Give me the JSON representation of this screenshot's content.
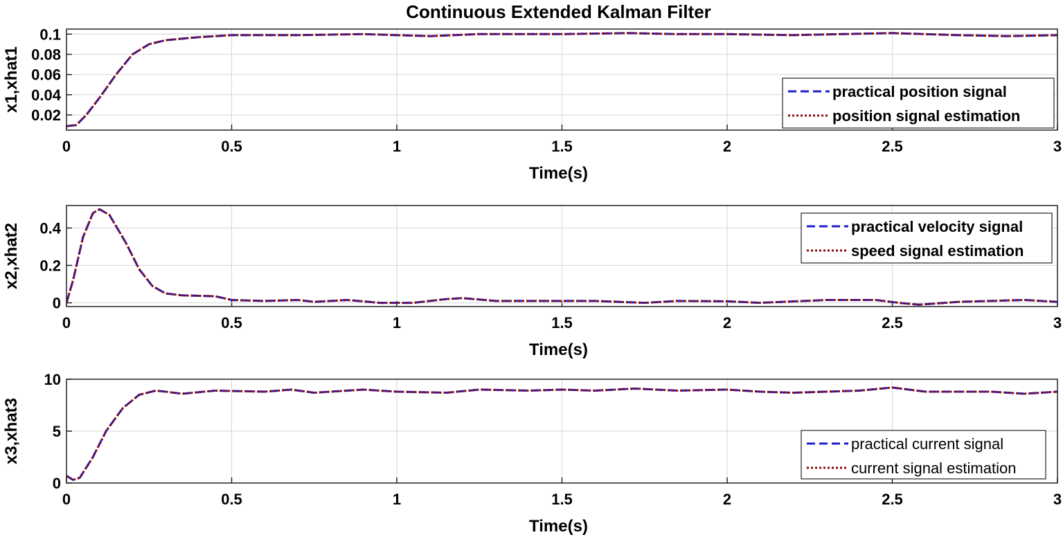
{
  "chart_data": [
    {
      "type": "line",
      "title": "Continuous Extended Kalman Filter",
      "xlabel": "Time(s)",
      "ylabel": "x1,xhat1",
      "xlim": [
        0,
        3
      ],
      "ylim": [
        0.005,
        0.105
      ],
      "xticks": [
        "0",
        "0.5",
        "1",
        "1.5",
        "2",
        "2.5",
        "3"
      ],
      "yticks": [
        "0.02",
        "0.04",
        "0.06",
        "0.08",
        "0.1"
      ],
      "grid": true,
      "legend_position": "bottom-right",
      "series": [
        {
          "name": "practical position signal",
          "color": "#1c1ccc",
          "style": "dashed",
          "points": [
            [
              0,
              0.009
            ],
            [
              0.03,
              0.01
            ],
            [
              0.06,
              0.02
            ],
            [
              0.1,
              0.037
            ],
            [
              0.15,
              0.06
            ],
            [
              0.2,
              0.08
            ],
            [
              0.25,
              0.09
            ],
            [
              0.3,
              0.094
            ],
            [
              0.4,
              0.097
            ],
            [
              0.5,
              0.099
            ],
            [
              0.7,
              0.099
            ],
            [
              0.9,
              0.1
            ],
            [
              1.0,
              0.099
            ],
            [
              1.1,
              0.098
            ],
            [
              1.25,
              0.1
            ],
            [
              1.5,
              0.1
            ],
            [
              1.7,
              0.101
            ],
            [
              1.85,
              0.1
            ],
            [
              2.0,
              0.1
            ],
            [
              2.2,
              0.099
            ],
            [
              2.5,
              0.101
            ],
            [
              2.7,
              0.099
            ],
            [
              2.85,
              0.098
            ],
            [
              3.0,
              0.099
            ]
          ]
        },
        {
          "name": "position signal estimation",
          "color": "#8b0a0a",
          "style": "dotted",
          "points": [
            [
              0,
              0.009
            ],
            [
              0.03,
              0.01
            ],
            [
              0.06,
              0.02
            ],
            [
              0.1,
              0.037
            ],
            [
              0.15,
              0.06
            ],
            [
              0.2,
              0.08
            ],
            [
              0.25,
              0.09
            ],
            [
              0.3,
              0.094
            ],
            [
              0.4,
              0.097
            ],
            [
              0.5,
              0.099
            ],
            [
              0.7,
              0.099
            ],
            [
              0.9,
              0.1
            ],
            [
              1.0,
              0.099
            ],
            [
              1.1,
              0.098
            ],
            [
              1.25,
              0.1
            ],
            [
              1.5,
              0.1
            ],
            [
              1.7,
              0.101
            ],
            [
              1.85,
              0.1
            ],
            [
              2.0,
              0.1
            ],
            [
              2.2,
              0.099
            ],
            [
              2.5,
              0.101
            ],
            [
              2.7,
              0.099
            ],
            [
              2.85,
              0.098
            ],
            [
              3.0,
              0.099
            ]
          ]
        }
      ]
    },
    {
      "type": "line",
      "title": "",
      "xlabel": "Time(s)",
      "ylabel": "x2,xhat2",
      "xlim": [
        0,
        3
      ],
      "ylim": [
        -0.02,
        0.52
      ],
      "xticks": [
        "0",
        "0.5",
        "1",
        "1.5",
        "2",
        "2.5",
        "3"
      ],
      "yticks": [
        "0",
        "0.2",
        "0.4"
      ],
      "grid": true,
      "legend_position": "top-right",
      "series": [
        {
          "name": "practical velocity signal",
          "color": "#1c1ccc",
          "style": "dashed",
          "points": [
            [
              0,
              0.0
            ],
            [
              0.02,
              0.12
            ],
            [
              0.05,
              0.35
            ],
            [
              0.08,
              0.48
            ],
            [
              0.1,
              0.5
            ],
            [
              0.13,
              0.47
            ],
            [
              0.18,
              0.32
            ],
            [
              0.22,
              0.18
            ],
            [
              0.26,
              0.09
            ],
            [
              0.3,
              0.05
            ],
            [
              0.35,
              0.04
            ],
            [
              0.45,
              0.035
            ],
            [
              0.5,
              0.015
            ],
            [
              0.6,
              0.01
            ],
            [
              0.7,
              0.015
            ],
            [
              0.75,
              0.005
            ],
            [
              0.85,
              0.015
            ],
            [
              0.95,
              0.0
            ],
            [
              1.05,
              0.0
            ],
            [
              1.15,
              0.02
            ],
            [
              1.2,
              0.025
            ],
            [
              1.3,
              0.01
            ],
            [
              1.5,
              0.01
            ],
            [
              1.6,
              0.01
            ],
            [
              1.75,
              0.0
            ],
            [
              1.85,
              0.01
            ],
            [
              2.0,
              0.008
            ],
            [
              2.1,
              0.0
            ],
            [
              2.3,
              0.015
            ],
            [
              2.45,
              0.015
            ],
            [
              2.52,
              0.0
            ],
            [
              2.58,
              -0.01
            ],
            [
              2.7,
              0.005
            ],
            [
              2.9,
              0.015
            ],
            [
              3.0,
              0.005
            ]
          ]
        },
        {
          "name": "speed signal estimation",
          "color": "#8b0a0a",
          "style": "dotted",
          "points": [
            [
              0,
              0.0
            ],
            [
              0.02,
              0.12
            ],
            [
              0.05,
              0.35
            ],
            [
              0.08,
              0.48
            ],
            [
              0.1,
              0.5
            ],
            [
              0.13,
              0.47
            ],
            [
              0.18,
              0.32
            ],
            [
              0.22,
              0.18
            ],
            [
              0.26,
              0.09
            ],
            [
              0.3,
              0.05
            ],
            [
              0.35,
              0.04
            ],
            [
              0.45,
              0.035
            ],
            [
              0.5,
              0.015
            ],
            [
              0.6,
              0.01
            ],
            [
              0.7,
              0.015
            ],
            [
              0.75,
              0.005
            ],
            [
              0.85,
              0.015
            ],
            [
              0.95,
              0.0
            ],
            [
              1.05,
              0.0
            ],
            [
              1.15,
              0.02
            ],
            [
              1.2,
              0.025
            ],
            [
              1.3,
              0.01
            ],
            [
              1.5,
              0.01
            ],
            [
              1.6,
              0.01
            ],
            [
              1.75,
              0.0
            ],
            [
              1.85,
              0.01
            ],
            [
              2.0,
              0.008
            ],
            [
              2.1,
              0.0
            ],
            [
              2.3,
              0.015
            ],
            [
              2.45,
              0.015
            ],
            [
              2.52,
              0.0
            ],
            [
              2.58,
              -0.01
            ],
            [
              2.7,
              0.005
            ],
            [
              2.9,
              0.015
            ],
            [
              3.0,
              0.005
            ]
          ]
        }
      ]
    },
    {
      "type": "line",
      "title": "",
      "xlabel": "Time(s)",
      "ylabel": "x3,xhat3",
      "xlim": [
        0,
        3
      ],
      "ylim": [
        0,
        10
      ],
      "xticks": [
        "0",
        "0.5",
        "1",
        "1.5",
        "2",
        "2.5",
        "3"
      ],
      "yticks": [
        "0",
        "5",
        "10"
      ],
      "grid": true,
      "legend_position": "bottom-right",
      "series": [
        {
          "name": "practical current signal",
          "color": "#1c1ccc",
          "style": "dashed",
          "points": [
            [
              0,
              0.7
            ],
            [
              0.02,
              0.3
            ],
            [
              0.04,
              0.5
            ],
            [
              0.08,
              2.5
            ],
            [
              0.12,
              5.0
            ],
            [
              0.17,
              7.2
            ],
            [
              0.22,
              8.5
            ],
            [
              0.27,
              8.9
            ],
            [
              0.3,
              8.8
            ],
            [
              0.35,
              8.6
            ],
            [
              0.45,
              8.9
            ],
            [
              0.6,
              8.8
            ],
            [
              0.68,
              9.0
            ],
            [
              0.75,
              8.7
            ],
            [
              0.9,
              9.0
            ],
            [
              1.0,
              8.8
            ],
            [
              1.15,
              8.7
            ],
            [
              1.25,
              9.0
            ],
            [
              1.4,
              8.9
            ],
            [
              1.5,
              9.0
            ],
            [
              1.6,
              8.9
            ],
            [
              1.72,
              9.1
            ],
            [
              1.85,
              8.9
            ],
            [
              2.0,
              9.0
            ],
            [
              2.1,
              8.8
            ],
            [
              2.2,
              8.7
            ],
            [
              2.4,
              8.9
            ],
            [
              2.5,
              9.2
            ],
            [
              2.6,
              8.8
            ],
            [
              2.8,
              8.8
            ],
            [
              2.9,
              8.6
            ],
            [
              3.0,
              8.8
            ]
          ]
        },
        {
          "name": "current signal estimation",
          "color": "#8b0a0a",
          "style": "dotted",
          "points": [
            [
              0,
              0.7
            ],
            [
              0.02,
              0.3
            ],
            [
              0.04,
              0.5
            ],
            [
              0.08,
              2.5
            ],
            [
              0.12,
              5.0
            ],
            [
              0.17,
              7.2
            ],
            [
              0.22,
              8.5
            ],
            [
              0.27,
              8.9
            ],
            [
              0.3,
              8.8
            ],
            [
              0.35,
              8.6
            ],
            [
              0.45,
              8.9
            ],
            [
              0.6,
              8.8
            ],
            [
              0.68,
              9.0
            ],
            [
              0.75,
              8.7
            ],
            [
              0.9,
              9.0
            ],
            [
              1.0,
              8.8
            ],
            [
              1.15,
              8.7
            ],
            [
              1.25,
              9.0
            ],
            [
              1.4,
              8.9
            ],
            [
              1.5,
              9.0
            ],
            [
              1.6,
              8.9
            ],
            [
              1.72,
              9.1
            ],
            [
              1.85,
              8.9
            ],
            [
              2.0,
              9.0
            ],
            [
              2.1,
              8.8
            ],
            [
              2.2,
              8.7
            ],
            [
              2.4,
              8.9
            ],
            [
              2.5,
              9.2
            ],
            [
              2.6,
              8.8
            ],
            [
              2.8,
              8.8
            ],
            [
              2.9,
              8.6
            ],
            [
              3.0,
              8.8
            ]
          ]
        }
      ]
    }
  ]
}
